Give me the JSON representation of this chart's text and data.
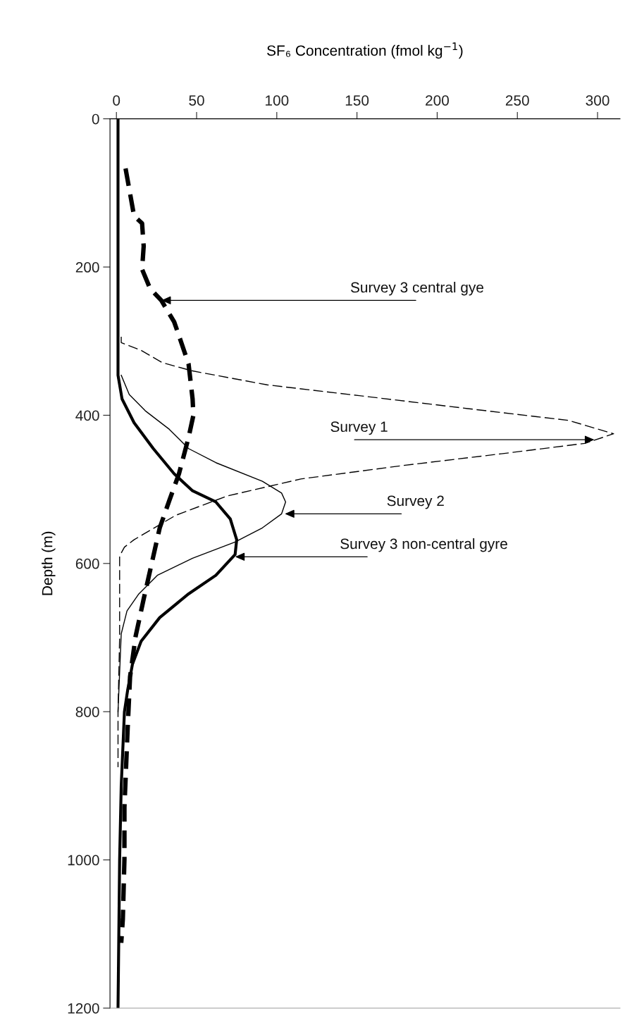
{
  "chart_data": {
    "type": "line",
    "xlabel": "SF₆ Concentration (fmol kg$^{−1}$)",
    "ylabel": "Depth (m)",
    "xlim": [
      -4,
      314
    ],
    "xticks": [
      0,
      50,
      100,
      150,
      200,
      250,
      300
    ],
    "ylim": [
      1200,
      0
    ],
    "yticks": [
      0,
      200,
      400,
      600,
      800,
      1000,
      1200
    ],
    "grid": false,
    "legend": false,
    "marker": "none",
    "series": [
      {
        "color": "#000000",
        "line_style": "dashed",
        "x": [
          5.7,
          11,
          16,
          17,
          16,
          21,
          28,
          36,
          40,
          45,
          47.5,
          48,
          45,
          39,
          33,
          27,
          22,
          17,
          12,
          8.5,
          7,
          5,
          5,
          4,
          3
        ],
        "values": [
          67,
          131,
          141,
          172,
          203,
          229,
          245,
          274,
          299,
          331,
          378,
          400,
          430,
          479,
          515,
          552,
          600,
          648,
          698,
          753,
          823,
          929,
          999,
          1080,
          1112
        ]
      },
      {
        "color": "#000000",
        "line_style": "dashed",
        "x": [
          3,
          3,
          15,
          28.6,
          47,
          94,
          157,
          219,
          282,
          310,
          292,
          240,
          178,
          115,
          69,
          37,
          11,
          5,
          2,
          2,
          1,
          1
        ],
        "values": [
          294,
          302,
          312,
          329,
          340,
          359,
          375,
          391,
          407,
          425,
          438,
          452,
          468,
          486,
          509,
          535,
          568,
          578,
          590,
          700,
          800,
          875
        ]
      },
      {
        "color": "#000000",
        "line_style": "solid",
        "x": [
          3,
          8,
          18,
          33,
          45,
          62,
          91,
          103,
          105.5,
          103,
          91,
          74,
          47.5,
          25.5,
          14,
          6.6,
          3,
          1
        ],
        "values": [
          346,
          372,
          394,
          419,
          445,
          464,
          489,
          505,
          517,
          533,
          552,
          571,
          593,
          616,
          641,
          664,
          695,
          800
        ]
      },
      {
        "color": "#000000",
        "line_style": "solid",
        "x": [
          1,
          1,
          1,
          3.5,
          11,
          23,
          36,
          47.5,
          62,
          71,
          75,
          74,
          62,
          45,
          27,
          15.4,
          10,
          7,
          5,
          3,
          2,
          1
        ],
        "values": [
          0,
          200,
          346,
          378,
          410,
          445,
          479,
          502,
          517,
          540,
          568,
          588,
          616,
          641,
          673,
          705,
          736,
          771,
          800,
          900,
          1000,
          1200
        ]
      }
    ],
    "annotations": [
      {
        "text": "Survey 3 central gye",
        "x": 28,
        "y": 245
      },
      {
        "text": "Survey 1",
        "x": 298,
        "y": 433
      },
      {
        "text": "Survey 2",
        "x": 105,
        "y": 533
      },
      {
        "text": "Survey 3 non-central gyre",
        "x": 74,
        "y": 591
      }
    ]
  }
}
